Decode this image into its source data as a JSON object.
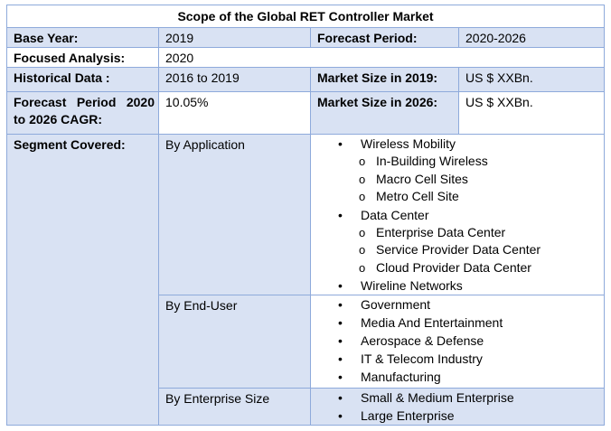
{
  "title": "Scope of the Global RET Controller Market",
  "base_year": {
    "label": "Base Year:",
    "value": "2019"
  },
  "forecast_period": {
    "label": "Forecast Period:",
    "value": "2020-2026"
  },
  "focused_analysis": {
    "label": "Focused Analysis:",
    "value": "2020"
  },
  "historical_data": {
    "label": "Historical Data :",
    "value": "2016 to 2019"
  },
  "market_size_2019": {
    "label": "Market Size in 2019:",
    "value": "US $ XXBn."
  },
  "cagr": {
    "label_line1": "Forecast Period 2020",
    "label_line2": "to 2026 CAGR:",
    "value": "10.05%"
  },
  "market_size_2026": {
    "label": "Market Size in 2026:",
    "value": "US $ XXBn."
  },
  "segments": {
    "label": "Segment Covered:",
    "by_application": {
      "label": "By Application",
      "items": [
        {
          "name": "Wireless Mobility",
          "sub": [
            "In-Building Wireless",
            "Macro Cell Sites",
            "Metro Cell Site"
          ]
        },
        {
          "name": "Data Center",
          "sub": [
            "Enterprise Data Center",
            "Service Provider Data Center",
            "Cloud Provider Data Center"
          ]
        },
        {
          "name": "Wireline Networks",
          "sub": []
        }
      ]
    },
    "by_end_user": {
      "label": "By End-User",
      "items": [
        "Government",
        "Media And Entertainment",
        "Aerospace & Defense",
        "IT & Telecom Industry",
        "Manufacturing"
      ]
    },
    "by_enterprise_size": {
      "label": "By Enterprise Size",
      "items": [
        "Small & Medium Enterprise",
        "Large Enterprise"
      ]
    }
  },
  "bullet_glyphs": {
    "level1": "•",
    "level2": "o"
  }
}
